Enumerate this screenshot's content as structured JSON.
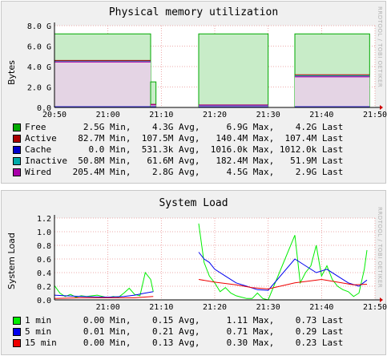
{
  "chart_data": [
    {
      "type": "area",
      "title": "Physical memory utilization",
      "ylabel": "Bytes",
      "ylim": [
        0,
        8.0
      ],
      "yticks": [
        "0.0",
        "2.0 G",
        "4.0 G",
        "6.0 G",
        "8.0 G"
      ],
      "xticks": [
        "20:50",
        "21:00",
        "21:10",
        "21:20",
        "21:30",
        "21:40",
        "21:50"
      ],
      "watermark": "RRDTOOL / TOBI OETIKER",
      "grid": true,
      "segments": [
        {
          "x": [
            "20:50",
            "21:08"
          ],
          "total": 7.2,
          "inactive": 4.55,
          "active": 4.6,
          "wired": 4.45
        },
        {
          "x": [
            "21:08",
            "21:09"
          ],
          "total": 2.5,
          "inactive": 0.3,
          "active": 0.3,
          "wired": 0.25
        },
        {
          "x": [
            "21:17",
            "21:30"
          ],
          "total": 7.2,
          "inactive": 0.2,
          "active": 0.25,
          "wired": 0.22
        },
        {
          "x": [
            "21:35",
            "21:49"
          ],
          "total": 7.2,
          "inactive": 3.1,
          "active": 3.2,
          "wired": 3.0
        }
      ],
      "series": [
        {
          "name": "Free",
          "color": "#00aa00",
          "min": "2.5G Min,",
          "avg": "4.3G Avg,",
          "max": "6.9G Max,",
          "last": "4.2G Last"
        },
        {
          "name": "Active",
          "color": "#aa0000",
          "min": "82.7M Min,",
          "avg": "107.5M Avg,",
          "max": "140.4M Max,",
          "last": "107.4M Last"
        },
        {
          "name": "Cache",
          "color": "#0000cc",
          "min": "0.0 Min,",
          "avg": "531.3k Avg,",
          "max": "1016.0k Max,",
          "last": "1012.0k Last"
        },
        {
          "name": "Inactive",
          "color": "#00aaaa",
          "min": "50.8M Min,",
          "avg": "61.6M Avg,",
          "max": "182.4M Max,",
          "last": "51.9M Last"
        },
        {
          "name": "Wired",
          "color": "#aa00aa",
          "min": "205.4M Min,",
          "avg": "2.8G Avg,",
          "max": "4.5G Max,",
          "last": "2.9G Last"
        }
      ]
    },
    {
      "type": "line",
      "title": "System Load",
      "ylabel": "System Load",
      "ylim": [
        0,
        1.2
      ],
      "yticks": [
        "0.0",
        "0.2",
        "0.4",
        "0.6",
        "0.8",
        "1.0",
        "1.2"
      ],
      "xticks": [
        "21:00",
        "21:10",
        "21:20",
        "21:30",
        "21:40",
        "21:50"
      ],
      "watermark": "RRDTOOL / TOBI OETIKER",
      "grid": true,
      "series": [
        {
          "name": "1 min",
          "color": "#00ee00",
          "min": "0.00 Min,",
          "avg": "0.15 Avg,",
          "max": "1.11 Max,",
          "last": "0.73 Last",
          "points": [
            [
              "20:50",
              0.21
            ],
            [
              "20:51",
              0.1
            ],
            [
              "20:52",
              0.05
            ],
            [
              "20:53",
              0.08
            ],
            [
              "20:54",
              0.04
            ],
            [
              "20:55",
              0.06
            ],
            [
              "20:56",
              0.05
            ],
            [
              "20:58",
              0.07
            ],
            [
              "21:00",
              0.03
            ],
            [
              "21:01",
              0.05
            ],
            [
              "21:02",
              0.04
            ],
            [
              "21:03",
              0.1
            ],
            [
              "21:04",
              0.17
            ],
            [
              "21:05",
              0.08
            ],
            [
              "21:06",
              0.06
            ],
            [
              "21:07",
              0.4
            ],
            [
              "21:08",
              0.3
            ],
            [
              "21:08.5",
              0.12
            ],
            [
              "21:17",
              1.12
            ],
            [
              "21:18",
              0.55
            ],
            [
              "21:19",
              0.35
            ],
            [
              "21:20",
              0.25
            ],
            [
              "21:21",
              0.12
            ],
            [
              "21:22",
              0.18
            ],
            [
              "21:23",
              0.1
            ],
            [
              "21:24",
              0.06
            ],
            [
              "21:25",
              0.04
            ],
            [
              "21:26",
              0.02
            ],
            [
              "21:27",
              0.02
            ],
            [
              "21:28",
              0.1
            ],
            [
              "21:29",
              0.02
            ],
            [
              "21:30",
              0.0
            ],
            [
              "21:35",
              0.95
            ],
            [
              "21:36",
              0.25
            ],
            [
              "21:37",
              0.4
            ],
            [
              "21:38",
              0.5
            ],
            [
              "21:39",
              0.8
            ],
            [
              "21:40",
              0.35
            ],
            [
              "21:41",
              0.5
            ],
            [
              "21:42",
              0.3
            ],
            [
              "21:43",
              0.2
            ],
            [
              "21:44",
              0.15
            ],
            [
              "21:45",
              0.12
            ],
            [
              "21:46",
              0.05
            ],
            [
              "21:47",
              0.1
            ],
            [
              "21:48",
              0.45
            ],
            [
              "21:48.5",
              0.73
            ]
          ]
        },
        {
          "name": "5 min",
          "color": "#0000ee",
          "min": "0.01 Min,",
          "avg": "0.21 Avg,",
          "max": "0.71 Max,",
          "last": "0.29 Last",
          "points": [
            [
              "20:50",
              0.07
            ],
            [
              "20:52",
              0.06
            ],
            [
              "20:55",
              0.05
            ],
            [
              "21:00",
              0.04
            ],
            [
              "21:03",
              0.05
            ],
            [
              "21:05",
              0.07
            ],
            [
              "21:07",
              0.1
            ],
            [
              "21:08.5",
              0.12
            ],
            [
              "21:17",
              0.7
            ],
            [
              "21:18",
              0.6
            ],
            [
              "21:19",
              0.55
            ],
            [
              "21:20",
              0.45
            ],
            [
              "21:22",
              0.35
            ],
            [
              "21:24",
              0.25
            ],
            [
              "21:26",
              0.2
            ],
            [
              "21:28",
              0.15
            ],
            [
              "21:30",
              0.14
            ],
            [
              "21:35",
              0.6
            ],
            [
              "21:37",
              0.5
            ],
            [
              "21:39",
              0.4
            ],
            [
              "21:41",
              0.45
            ],
            [
              "21:43",
              0.35
            ],
            [
              "21:45",
              0.25
            ],
            [
              "21:47",
              0.2
            ],
            [
              "21:48.5",
              0.29
            ]
          ]
        },
        {
          "name": "15 min",
          "color": "#ee0000",
          "min": "0.00 Min,",
          "avg": "0.13 Avg,",
          "max": "0.30 Max,",
          "last": "0.23 Last",
          "points": [
            [
              "20:50",
              0.02
            ],
            [
              "20:55",
              0.03
            ],
            [
              "21:00",
              0.03
            ],
            [
              "21:05",
              0.03
            ],
            [
              "21:08.5",
              0.05
            ],
            [
              "21:17",
              0.3
            ],
            [
              "21:20",
              0.26
            ],
            [
              "21:24",
              0.22
            ],
            [
              "21:27",
              0.18
            ],
            [
              "21:30",
              0.16
            ],
            [
              "21:35",
              0.25
            ],
            [
              "21:38",
              0.28
            ],
            [
              "21:40",
              0.3
            ],
            [
              "21:43",
              0.26
            ],
            [
              "21:46",
              0.22
            ],
            [
              "21:48.5",
              0.23
            ]
          ]
        }
      ]
    }
  ]
}
